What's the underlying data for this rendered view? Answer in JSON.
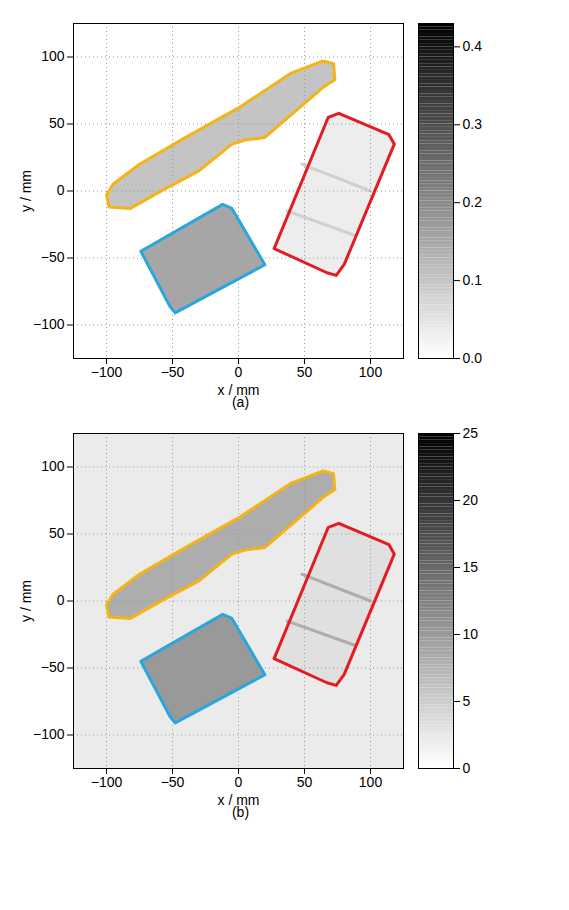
{
  "chart_data": [
    {
      "type": "heatmap",
      "panel_label": "(a)",
      "x_label": "x / mm",
      "y_label": "y / mm",
      "xlim": [
        -125,
        125
      ],
      "ylim": [
        -125,
        125
      ],
      "xticks": [
        -100,
        -50,
        0,
        50,
        100
      ],
      "yticks": [
        -100,
        -50,
        0,
        50,
        100
      ],
      "grid": true,
      "background_value": 0,
      "regions": [
        {
          "color": "#f4b416",
          "fill_value": 0.1,
          "points": [
            [
              -100,
              -3
            ],
            [
              -98,
              -12
            ],
            [
              -82,
              -13
            ],
            [
              -55,
              2
            ],
            [
              -30,
              15
            ],
            [
              -5,
              35
            ],
            [
              5,
              38
            ],
            [
              20,
              40
            ],
            [
              65,
              78
            ],
            [
              73,
              83
            ],
            [
              72,
              95
            ],
            [
              64,
              97
            ],
            [
              40,
              88
            ],
            [
              0,
              62
            ],
            [
              -40,
              40
            ],
            [
              -75,
              20
            ],
            [
              -95,
              5
            ]
          ]
        },
        {
          "color": "#e31b23",
          "fill_value": 0.03,
          "points": [
            [
              27,
              -43
            ],
            [
              68,
              55
            ],
            [
              76,
              58
            ],
            [
              114,
              42
            ],
            [
              118,
              35
            ],
            [
              80,
              -55
            ],
            [
              74,
              -63
            ],
            [
              67,
              -61
            ]
          ]
        },
        {
          "color": "#2aa6de",
          "fill_value": 0.15,
          "points": [
            [
              -74,
              -45
            ],
            [
              -12,
              -10
            ],
            [
              -5,
              -13
            ],
            [
              20,
              -55
            ],
            [
              5,
              -63
            ],
            [
              -48,
              -91
            ],
            [
              -52,
              -86
            ]
          ]
        }
      ],
      "features": [
        {
          "value": 0.08,
          "points": [
            [
              48,
              20
            ],
            [
              100,
              0
            ]
          ]
        },
        {
          "value": 0.08,
          "points": [
            [
              37,
              -15
            ],
            [
              88,
              -33
            ]
          ]
        }
      ],
      "colorbar": {
        "lim": [
          0,
          0.43
        ],
        "ticks": [
          {
            "value": 0,
            "label": "0.0"
          },
          0.1,
          0.2,
          0.3,
          0.4
        ]
      }
    },
    {
      "type": "heatmap",
      "panel_label": "(b)",
      "x_label": "x / mm",
      "y_label": "y / mm",
      "xlim": [
        -125,
        125
      ],
      "ylim": [
        -125,
        125
      ],
      "xticks": [
        -100,
        -50,
        0,
        50,
        100
      ],
      "yticks": [
        -100,
        -50,
        0,
        50,
        100
      ],
      "grid": true,
      "background_value": 2,
      "regions": [
        {
          "color": "#f4b416",
          "fill_value": 8,
          "points": [
            [
              -100,
              -3
            ],
            [
              -98,
              -12
            ],
            [
              -82,
              -13
            ],
            [
              -55,
              2
            ],
            [
              -30,
              15
            ],
            [
              -5,
              35
            ],
            [
              5,
              38
            ],
            [
              20,
              40
            ],
            [
              65,
              78
            ],
            [
              73,
              83
            ],
            [
              72,
              95
            ],
            [
              64,
              97
            ],
            [
              40,
              88
            ],
            [
              0,
              62
            ],
            [
              -40,
              40
            ],
            [
              -75,
              20
            ],
            [
              -95,
              5
            ]
          ]
        },
        {
          "color": "#e31b23",
          "fill_value": 3,
          "points": [
            [
              27,
              -43
            ],
            [
              68,
              55
            ],
            [
              76,
              58
            ],
            [
              114,
              42
            ],
            [
              118,
              35
            ],
            [
              80,
              -55
            ],
            [
              74,
              -63
            ],
            [
              67,
              -61
            ]
          ]
        },
        {
          "color": "#2aa6de",
          "fill_value": 10,
          "points": [
            [
              -74,
              -45
            ],
            [
              -12,
              -10
            ],
            [
              -5,
              -13
            ],
            [
              20,
              -55
            ],
            [
              5,
              -63
            ],
            [
              -48,
              -91
            ],
            [
              -52,
              -86
            ]
          ]
        }
      ],
      "features": [
        {
          "value": 8,
          "points": [
            [
              48,
              20
            ],
            [
              100,
              0
            ]
          ]
        },
        {
          "value": 8,
          "points": [
            [
              37,
              -15
            ],
            [
              88,
              -33
            ]
          ]
        }
      ],
      "colorbar": {
        "lim": [
          0,
          25
        ],
        "ticks": [
          0,
          5,
          10,
          15,
          20,
          25
        ]
      }
    }
  ]
}
